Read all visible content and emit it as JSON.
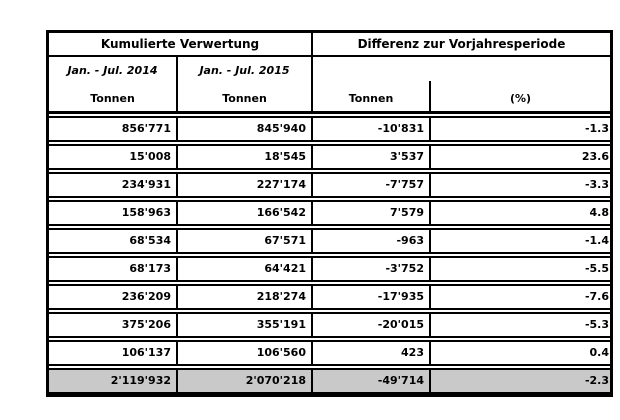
{
  "table": {
    "header": {
      "group_left": "Kumulierte Verwertung",
      "group_right": "Differenz zur Vorjahresperiode",
      "period_left": "Jan. - Jul. 2014",
      "period_right": "Jan. - Jul. 2015",
      "unit_left": "Tonnen",
      "unit_right": "Tonnen",
      "unit_diff": "Tonnen",
      "unit_pct": "(%)"
    },
    "rows": [
      [
        "856'771",
        "845'940",
        "-10'831",
        "-1.3"
      ],
      [
        "15'008",
        "18'545",
        "3'537",
        "23.6"
      ],
      [
        "234'931",
        "227'174",
        "-7'757",
        "-3.3"
      ],
      [
        "158'963",
        "166'542",
        "7'579",
        "4.8"
      ],
      [
        "68'534",
        "67'571",
        "-963",
        "-1.4"
      ],
      [
        "68'173",
        "64'421",
        "-3'752",
        "-5.5"
      ],
      [
        "236'209",
        "218'274",
        "-17'935",
        "-7.6"
      ],
      [
        "375'206",
        "355'191",
        "-20'015",
        "-5.3"
      ],
      [
        "106'137",
        "106'560",
        "423",
        "0.4"
      ]
    ],
    "total": [
      "2'119'932",
      "2'070'218",
      "-49'714",
      "-2.3"
    ],
    "colors": {
      "border": "#000000",
      "totalbg": "#c9c9c9",
      "text": "#000000",
      "bg": "#ffffff"
    }
  },
  "chart_data": {
    "type": "table",
    "title": "Kumulierte Verwertung — Differenz zur Vorjahresperiode",
    "column_groups": [
      {
        "label": "Kumulierte Verwertung",
        "columns": [
          "Jan. - Jul. 2014 (Tonnen)",
          "Jan. - Jul. 2015 (Tonnen)"
        ]
      },
      {
        "label": "Differenz zur Vorjahresperiode",
        "columns": [
          "Tonnen",
          "(%)"
        ]
      }
    ],
    "rows": [
      [
        856771,
        845940,
        -10831,
        -1.3
      ],
      [
        15008,
        18545,
        3537,
        23.6
      ],
      [
        234931,
        227174,
        -7757,
        -3.3
      ],
      [
        158963,
        166542,
        7579,
        4.8
      ],
      [
        68534,
        67571,
        -963,
        -1.4
      ],
      [
        68173,
        64421,
        -3752,
        -5.5
      ],
      [
        236209,
        218274,
        -17935,
        -7.6
      ],
      [
        375206,
        355191,
        -20015,
        -5.3
      ],
      [
        106137,
        106560,
        423,
        0.4
      ]
    ],
    "total_row": [
      2119932,
      2070218,
      -49714,
      -2.3
    ],
    "layout": {
      "total_row_highlighted": true,
      "number_separator": "'"
    }
  }
}
